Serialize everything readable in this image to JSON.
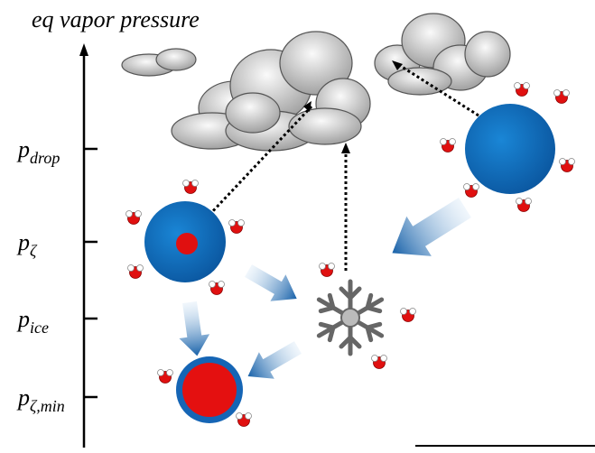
{
  "axis": {
    "title": "eq vapor pressure"
  },
  "levels": [
    {
      "base": "p",
      "sub": "drop"
    },
    {
      "base": "p",
      "sub": "ζ"
    },
    {
      "base": "p",
      "sub": "ice"
    },
    {
      "base": "p",
      "sub": "ζ,min"
    }
  ]
}
